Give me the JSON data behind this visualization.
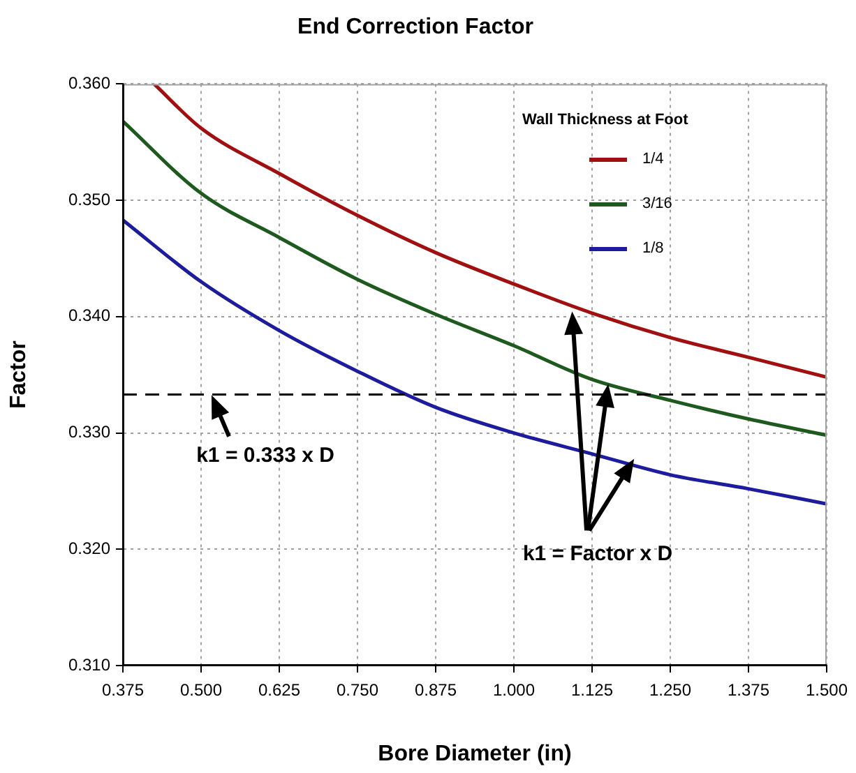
{
  "chart_data": {
    "type": "line",
    "title": "End Correction Factor",
    "xlabel": "Bore Diameter (in)",
    "ylabel": "Factor",
    "legend_title": "Wall Thickness at Foot",
    "legend": "top right",
    "grid": true,
    "line_style": "solid",
    "marker": "none",
    "xlim": [
      0.375,
      1.5
    ],
    "ylim": [
      0.31,
      0.36
    ],
    "xticks": [
      0.375,
      {
        "value": 0.5,
        "label": "0.500"
      },
      0.625,
      {
        "value": 0.75,
        "label": "0.750"
      },
      0.875,
      {
        "value": 1,
        "label": "1.000"
      },
      1.125,
      {
        "value": 1.25,
        "label": "1.250"
      },
      1.375,
      {
        "value": 1.5,
        "label": "1.500"
      }
    ],
    "yticks": [
      {
        "value": 0.31,
        "label": "0.310"
      },
      {
        "value": 0.32,
        "label": "0.320"
      },
      {
        "value": 0.33,
        "label": "0.330"
      },
      {
        "value": 0.34,
        "label": "0.340"
      },
      {
        "value": 0.35,
        "label": "0.350"
      },
      {
        "value": 0.36,
        "label": "0.360"
      }
    ],
    "series": [
      {
        "name": "1/4",
        "color": "#a01010",
        "x": [
          0.425,
          0.5,
          0.625,
          0.75,
          0.875,
          1,
          1.125,
          1.25,
          1.375,
          1.5
        ],
        "values": [
          0.36,
          0.3562,
          0.3523,
          0.3487,
          0.3455,
          0.3428,
          0.3403,
          0.3382,
          0.3365,
          0.3348
        ]
      },
      {
        "name": "3/16",
        "color": "#1e5a1e",
        "x": [
          0.375,
          0.5,
          0.625,
          0.75,
          0.875,
          1,
          1.125,
          1.25,
          1.375,
          1.5
        ],
        "values": [
          0.3568,
          0.3506,
          0.3468,
          0.3432,
          0.3402,
          0.3375,
          0.3346,
          0.3328,
          0.3312,
          0.3298
        ]
      },
      {
        "name": "1/8",
        "color": "#1c1c9c",
        "x": [
          0.375,
          0.5,
          0.625,
          0.75,
          0.875,
          1,
          1.125,
          1.25,
          1.375,
          1.5
        ],
        "values": [
          0.3483,
          0.343,
          0.3388,
          0.3353,
          0.3322,
          0.33,
          0.3282,
          0.3264,
          0.3252,
          0.3239
        ]
      }
    ],
    "ref_lines": [
      {
        "axis": "y",
        "value": 0.3333,
        "label": "k1 = 0.333 x D",
        "color": "#000000",
        "line_style": "dashed"
      }
    ],
    "annotations": [
      "k1 = Factor x D"
    ]
  }
}
